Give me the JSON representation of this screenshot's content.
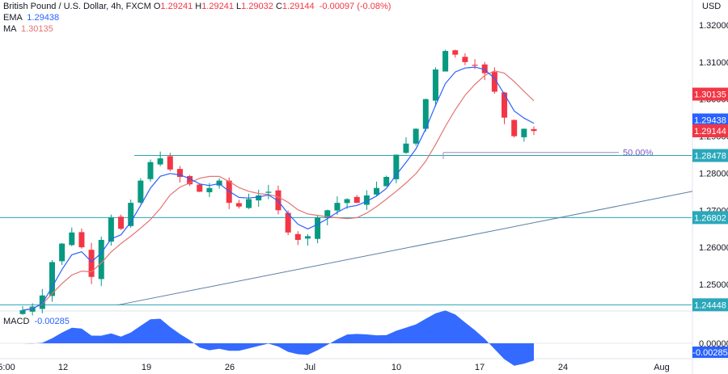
{
  "header": {
    "title": "British Pound / U.S. Dollar, 4h, FXCM",
    "ohlc": [
      {
        "label": "O",
        "value": "1.29241"
      },
      {
        "label": "H",
        "value": "1.29241"
      },
      {
        "label": "L",
        "value": "1.29032"
      },
      {
        "label": "C",
        "value": "1.29144"
      }
    ],
    "change": "-0.00097 (-0.08%)",
    "ema_label": "EMA",
    "ema_value": "1.29438",
    "ma_label": "MA",
    "ma_value": "1.30135",
    "macd_label": "MACD",
    "macd_value": "-0.00285"
  },
  "colors": {
    "up": "#089981",
    "down": "#f23645",
    "ema": "#2962ff",
    "ma": "#e57373",
    "hline": "#26a5b5",
    "trend": "#5b7fa6",
    "macd": "#2962ff",
    "fib": "#9c8bb8"
  },
  "chart_data": {
    "type": "candlestick",
    "title": "British Pound / U.S. Dollar, 4h, FXCM",
    "currency": "USD",
    "y_ticks": [
      "1.32000",
      "1.31000",
      "1.30000",
      "1.29000",
      "1.28000",
      "1.27000",
      "1.26000",
      "1.25000"
    ],
    "x_ticks": [
      "5:00",
      "12",
      "19",
      "26",
      "Jul",
      "10",
      "17",
      "24",
      "Aug"
    ],
    "price_tags": [
      {
        "label": "1.30135",
        "kind": "ma"
      },
      {
        "label": "1.29438",
        "kind": "ema"
      },
      {
        "label": "1.29144",
        "kind": "last"
      },
      {
        "label": "1.28478",
        "kind": "level"
      },
      {
        "label": "1.26802",
        "kind": "level"
      },
      {
        "label": "1.24448",
        "kind": "level"
      }
    ],
    "horizontal_levels": [
      1.28478,
      1.26802,
      1.24448
    ],
    "fib_label": "50.00%",
    "macd_ticks": [
      "0.00000",
      "-0.00285"
    ],
    "series": [
      {
        "name": "EMA",
        "value": 1.29438
      },
      {
        "name": "MA",
        "value": 1.30135
      }
    ],
    "close_path": [
      1.243,
      1.244,
      1.247,
      1.256,
      1.261,
      1.264,
      1.26,
      1.252,
      1.262,
      1.268,
      1.265,
      1.272,
      1.278,
      1.283,
      1.284,
      1.281,
      1.279,
      1.277,
      1.275,
      1.276,
      1.278,
      1.272,
      1.271,
      1.273,
      1.274,
      1.275,
      1.27,
      1.264,
      1.262,
      1.263,
      1.268,
      1.27,
      1.272,
      1.273,
      1.272,
      1.274,
      1.276,
      1.279,
      1.285,
      1.288,
      1.292,
      1.3,
      1.308,
      1.313,
      1.312,
      1.31,
      1.309,
      1.307,
      1.302,
      1.295,
      1.29,
      1.292,
      1.2914
    ]
  }
}
